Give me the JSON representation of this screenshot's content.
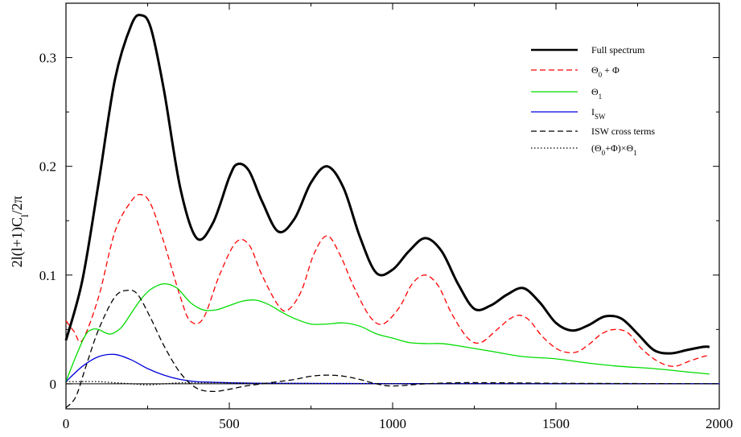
{
  "chart_data": {
    "type": "line",
    "ylabel": "2l(l+1)C_l/2π",
    "xlabel": "",
    "xlim": [
      0,
      2000
    ],
    "ylim": [
      -0.023,
      0.35
    ],
    "x_ticks": [
      0,
      500,
      1000,
      1500,
      2000
    ],
    "y_ticks": [
      0,
      0.1,
      0.2,
      0.3
    ],
    "x_tick_labels": [
      "0",
      "500",
      "1000",
      "1500",
      "2000"
    ],
    "y_tick_labels": [
      "0",
      "0.1",
      "0.2",
      "0.3"
    ],
    "grid": false,
    "legend_position": "top-right",
    "series": [
      {
        "name": "Full spectrum",
        "color": "#000000",
        "dash": "solid",
        "width": 3,
        "x": [
          0,
          50,
          100,
          150,
          200,
          230,
          260,
          300,
          350,
          400,
          450,
          500,
          525,
          560,
          600,
          650,
          700,
          750,
          800,
          850,
          900,
          950,
          1000,
          1050,
          1100,
          1150,
          1200,
          1250,
          1300,
          1350,
          1400,
          1450,
          1500,
          1550,
          1600,
          1650,
          1700,
          1750,
          1800,
          1850,
          1900,
          1950,
          1970
        ],
        "y": [
          0.04,
          0.095,
          0.185,
          0.28,
          0.33,
          0.339,
          0.327,
          0.27,
          0.18,
          0.134,
          0.148,
          0.19,
          0.202,
          0.196,
          0.168,
          0.14,
          0.152,
          0.185,
          0.2,
          0.18,
          0.135,
          0.102,
          0.105,
          0.122,
          0.134,
          0.122,
          0.092,
          0.069,
          0.072,
          0.082,
          0.088,
          0.075,
          0.056,
          0.049,
          0.054,
          0.062,
          0.06,
          0.046,
          0.031,
          0.028,
          0.031,
          0.034,
          0.034
        ]
      },
      {
        "name": "Θ_0 + Φ",
        "color": "#ff0000",
        "dash": "dashed",
        "width": 1.3,
        "x": [
          0,
          25,
          50,
          100,
          150,
          200,
          230,
          260,
          300,
          350,
          380,
          420,
          470,
          520,
          560,
          600,
          650,
          680,
          720,
          760,
          800,
          840,
          880,
          930,
          970,
          1020,
          1060,
          1100,
          1140,
          1180,
          1230,
          1270,
          1320,
          1360,
          1390,
          1420,
          1460,
          1510,
          1560,
          1600,
          1640,
          1680,
          1720,
          1760,
          1810,
          1860,
          1910,
          1950,
          1970
        ],
        "y": [
          0.058,
          0.048,
          0.04,
          0.08,
          0.14,
          0.168,
          0.174,
          0.165,
          0.13,
          0.08,
          0.058,
          0.06,
          0.1,
          0.13,
          0.128,
          0.1,
          0.072,
          0.068,
          0.085,
          0.12,
          0.136,
          0.118,
          0.09,
          0.062,
          0.055,
          0.07,
          0.092,
          0.1,
          0.09,
          0.065,
          0.042,
          0.038,
          0.05,
          0.06,
          0.063,
          0.058,
          0.043,
          0.031,
          0.029,
          0.036,
          0.046,
          0.05,
          0.047,
          0.033,
          0.021,
          0.016,
          0.021,
          0.025,
          0.026
        ]
      },
      {
        "name": "Θ_1",
        "color": "#00dd00",
        "dash": "solid",
        "width": 1.3,
        "x": [
          0,
          30,
          60,
          80,
          100,
          120,
          140,
          170,
          200,
          230,
          260,
          300,
          340,
          380,
          420,
          460,
          500,
          540,
          580,
          620,
          660,
          700,
          750,
          800,
          850,
          900,
          950,
          1000,
          1050,
          1100,
          1150,
          1200,
          1300,
          1400,
          1500,
          1600,
          1700,
          1800,
          1900,
          1970
        ],
        "y": [
          0.002,
          0.025,
          0.045,
          0.05,
          0.05,
          0.047,
          0.046,
          0.052,
          0.065,
          0.078,
          0.087,
          0.092,
          0.088,
          0.075,
          0.068,
          0.068,
          0.072,
          0.076,
          0.077,
          0.073,
          0.066,
          0.06,
          0.055,
          0.055,
          0.056,
          0.053,
          0.046,
          0.042,
          0.038,
          0.037,
          0.037,
          0.035,
          0.03,
          0.025,
          0.023,
          0.019,
          0.016,
          0.014,
          0.011,
          0.009
        ]
      },
      {
        "name": "I_SW",
        "color": "#0000dd",
        "dash": "solid",
        "width": 1.3,
        "x": [
          0,
          50,
          100,
          150,
          200,
          250,
          300,
          350,
          400,
          500,
          600,
          800,
          1000,
          1500,
          2000
        ],
        "y": [
          0.002,
          0.016,
          0.025,
          0.027,
          0.022,
          0.014,
          0.008,
          0.004,
          0.002,
          0.001,
          0.0005,
          0.0003,
          0.0002,
          0.0001,
          0.0001
        ]
      },
      {
        "name": "ISW cross terms",
        "color": "#000000",
        "dash": "dashed",
        "width": 1.3,
        "x": [
          0,
          30,
          60,
          100,
          150,
          190,
          220,
          260,
          300,
          350,
          400,
          450,
          500,
          550,
          600,
          650,
          700,
          750,
          800,
          850,
          900,
          950,
          1000,
          1100,
          1200,
          1300,
          1500,
          1700,
          2000
        ],
        "y": [
          -0.022,
          -0.012,
          0.015,
          0.05,
          0.08,
          0.086,
          0.082,
          0.06,
          0.035,
          0.01,
          -0.004,
          -0.007,
          -0.005,
          -0.002,
          0.0,
          0.002,
          0.004,
          0.007,
          0.008,
          0.007,
          0.004,
          0.0,
          -0.002,
          0.0,
          0.001,
          0.001,
          0.0005,
          0.0003,
          0.0
        ]
      },
      {
        "name": "(Θ_0+Φ)×Θ_1",
        "color": "#000000",
        "dash": "dotted",
        "width": 1.3,
        "x": [
          0,
          50,
          100,
          150,
          200,
          250,
          300,
          350,
          400,
          500,
          600,
          800,
          1000,
          1500,
          2000
        ],
        "y": [
          0.002,
          0.002,
          0.002,
          0.001,
          0.0,
          -0.001,
          0.0,
          0.001,
          0.001,
          0.001,
          0.0005,
          0.0003,
          0.0002,
          0.0001,
          0.0
        ]
      }
    ]
  }
}
